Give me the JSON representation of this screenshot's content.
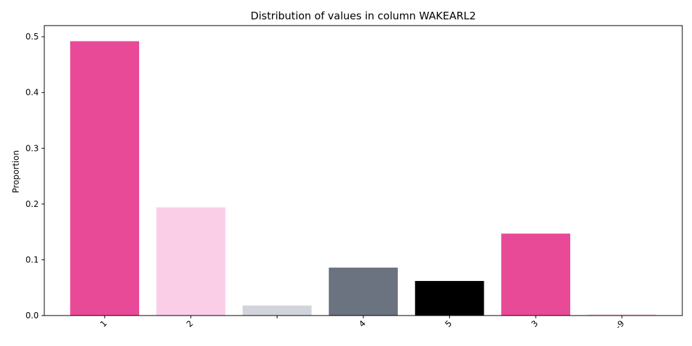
{
  "chart_data": {
    "type": "bar",
    "title": "Distribution of values in column WAKEARL2",
    "xlabel": "",
    "ylabel": "Proportion",
    "categories": [
      "1",
      "2",
      "",
      "4",
      "5",
      "3",
      "-9"
    ],
    "values": [
      0.492,
      0.194,
      0.018,
      0.086,
      0.062,
      0.147,
      0.002
    ],
    "colors": [
      "#e84a97",
      "#f9cee6",
      "#d1d5db",
      "#6b7280",
      "#000000",
      "#e84a97",
      "#f9cee6"
    ],
    "ylim": [
      0,
      0.52
    ],
    "yticks": [
      0.0,
      0.1,
      0.2,
      0.3,
      0.4,
      0.5
    ],
    "ytick_labels": [
      "0.0",
      "0.1",
      "0.2",
      "0.3",
      "0.4",
      "0.5"
    ],
    "grid": false,
    "legend": "none"
  }
}
